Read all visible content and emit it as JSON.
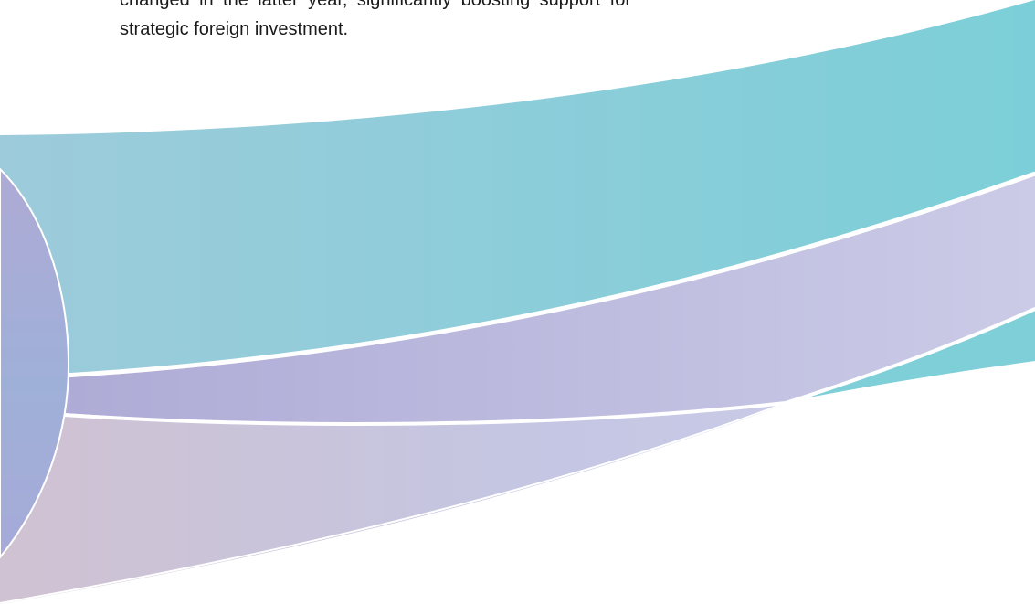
{
  "paragraph": {
    "line_1": "changed in the latter year, significantly boosting support for",
    "line_2": "strategic foreign investment."
  },
  "colors": {
    "teal": "#7fcfd8",
    "teal_light": "#9ecbdc",
    "lavender": "#b3b0d8",
    "lavender_light": "#c8c9e6",
    "pink_lilac": "#cdc1d3",
    "circle_blue": "#a6acd8",
    "stroke": "#ffffff"
  }
}
